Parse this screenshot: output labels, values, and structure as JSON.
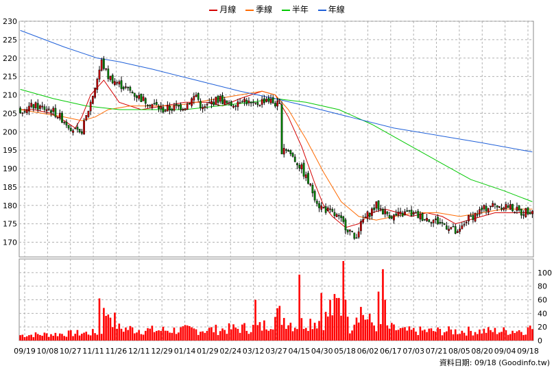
{
  "chart_data": {
    "type": "line",
    "legend": [
      {
        "name": "月線",
        "color": "#d40000"
      },
      {
        "name": "季線",
        "color": "#ff6a00"
      },
      {
        "name": "半年",
        "color": "#00c800"
      },
      {
        "name": "年線",
        "color": "#1e5fd8"
      }
    ],
    "x_ticks": [
      "09/19",
      "10/08",
      "10/27",
      "11/11",
      "11/26",
      "12/11",
      "12/29",
      "01/14",
      "01/29",
      "02/24",
      "03/12",
      "03/27",
      "04/15",
      "04/30",
      "05/18",
      "06/02",
      "06/17",
      "07/03",
      "07/21",
      "08/05",
      "08/20",
      "09/04",
      "09/18"
    ],
    "price_axis": {
      "ylim": [
        166,
        230
      ],
      "ticks": [
        170,
        175,
        180,
        185,
        190,
        195,
        200,
        205,
        210,
        215,
        220,
        225,
        230
      ]
    },
    "volume_axis": {
      "ylim": [
        0,
        120
      ],
      "ticks": [
        0,
        20,
        40,
        60,
        80,
        100
      ]
    },
    "colors": {
      "up": "#d40000",
      "down": "#008c00",
      "volume": "#ff0000",
      "grid": "#b0b0b0"
    },
    "series": [
      {
        "name": "月線",
        "x": [
          0,
          6,
          14,
          20,
          25,
          28,
          32,
          38,
          45,
          55,
          65,
          75,
          85,
          92,
          100,
          110,
          116,
          122,
          128,
          134,
          138,
          142,
          148,
          154,
          160,
          166,
          172,
          178,
          185,
          192,
          198,
          204,
          210,
          216,
          222,
          228,
          233
        ],
        "values": [
          206,
          206,
          205,
          203,
          201,
          204,
          210,
          214,
          208,
          206,
          207,
          208,
          208,
          207,
          209,
          211,
          210,
          204,
          196,
          186,
          180,
          177,
          174,
          175,
          178,
          179,
          178,
          177,
          178,
          177,
          175,
          176,
          177,
          178,
          178,
          178,
          178
        ]
      },
      {
        "name": "季線",
        "x": [
          0,
          10,
          20,
          28,
          34,
          40,
          50,
          60,
          70,
          80,
          90,
          100,
          110,
          116,
          122,
          130,
          138,
          146,
          154,
          162,
          170,
          180,
          190,
          200,
          210,
          220,
          233
        ],
        "values": [
          206,
          205,
          204,
          203,
          204,
          206,
          207,
          207,
          207,
          208,
          209,
          210,
          211,
          210,
          206,
          198,
          189,
          181,
          177,
          176,
          177,
          178,
          178,
          177,
          178,
          179,
          179
        ]
      },
      {
        "name": "半年",
        "x": [
          0,
          15,
          30,
          45,
          60,
          75,
          90,
          105,
          116,
          130,
          145,
          160,
          175,
          190,
          205,
          220,
          233
        ],
        "values": [
          211.5,
          209,
          207,
          206,
          206,
          206,
          207,
          208,
          209,
          208,
          206,
          202,
          197,
          192,
          187,
          184,
          181
        ]
      },
      {
        "name": "年線",
        "x": [
          0,
          20,
          35,
          45,
          60,
          80,
          100,
          116,
          130,
          150,
          170,
          190,
          210,
          233
        ],
        "values": [
          227.5,
          223,
          220,
          219,
          217,
          214,
          211,
          209,
          207,
          204,
          201,
          199,
          197,
          194.5
        ]
      }
    ],
    "candles_n": 234,
    "candle_path_x": [
      0,
      6,
      14,
      20,
      27,
      29,
      33,
      37,
      40,
      45,
      55,
      65,
      75,
      80,
      83,
      87,
      91,
      95,
      101,
      106,
      112,
      118,
      119,
      120,
      123,
      128,
      132,
      136,
      144,
      150,
      152,
      156,
      162,
      166,
      170,
      176,
      182,
      188,
      196,
      199,
      203,
      208,
      214,
      221,
      228,
      233
    ],
    "candle_path_y": [
      206,
      207,
      206,
      203,
      199,
      202,
      210,
      219,
      215,
      213,
      209,
      206,
      207,
      210,
      206,
      208,
      209,
      207,
      209,
      207,
      209,
      207,
      195,
      196,
      194,
      190,
      185,
      180,
      177,
      173,
      171,
      176,
      180,
      178,
      177,
      178,
      177,
      176,
      174,
      172,
      176,
      178,
      180,
      180,
      178,
      179
    ],
    "volume_path_x": [
      0,
      20,
      38,
      40,
      45,
      60,
      90,
      110,
      118,
      125,
      130,
      138,
      145,
      150,
      154,
      158,
      162,
      175,
      200,
      220,
      233
    ],
    "volume_path_y": [
      8,
      10,
      12,
      45,
      18,
      15,
      16,
      20,
      38,
      22,
      28,
      30,
      55,
      18,
      50,
      30,
      22,
      14,
      14,
      14,
      16
    ],
    "volume_spikes": [
      {
        "i": 36,
        "v": 62
      },
      {
        "i": 38,
        "v": 48
      },
      {
        "i": 107,
        "v": 60
      },
      {
        "i": 127,
        "v": 97
      },
      {
        "i": 137,
        "v": 70
      },
      {
        "i": 141,
        "v": 60
      },
      {
        "i": 147,
        "v": 117
      },
      {
        "i": 148,
        "v": 60
      },
      {
        "i": 163,
        "v": 72
      },
      {
        "i": 165,
        "v": 105
      },
      {
        "i": 166,
        "v": 60
      },
      {
        "i": 232,
        "v": 22
      }
    ],
    "credit": "資料日期: 09/18  (Goodinfo.tw)"
  }
}
